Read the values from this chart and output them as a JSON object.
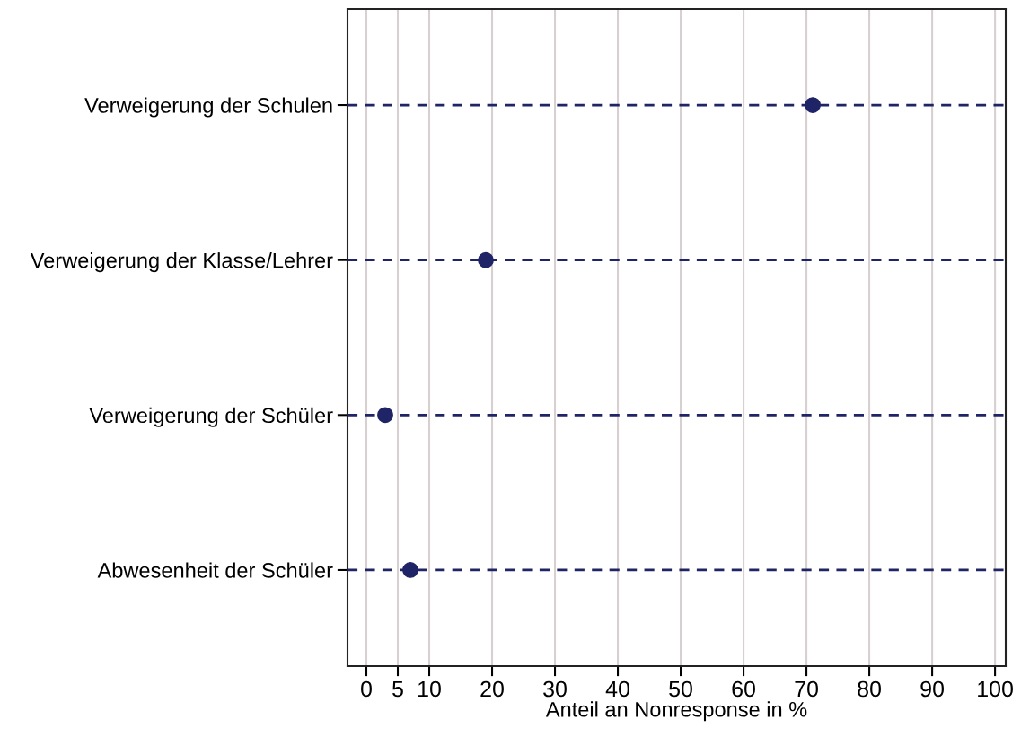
{
  "chart_data": {
    "type": "scatter",
    "orientation": "horizontal",
    "xlabel": "Anteil an Nonresponse in %",
    "categories": [
      "Verweigerung der Schulen",
      "Verweigerung der Klasse/Lehrer",
      "Verweigerung der Schüler",
      "Abwesenheit der Schüler"
    ],
    "series": [
      {
        "color": "#1f2466",
        "values": [
          71,
          19,
          3,
          7
        ]
      }
    ],
    "marker": "circle",
    "xlim": [
      -3,
      101.7
    ],
    "xticks": [
      0,
      5,
      10,
      20,
      30,
      40,
      50,
      60,
      70,
      80,
      90,
      100
    ],
    "grid": true
  }
}
